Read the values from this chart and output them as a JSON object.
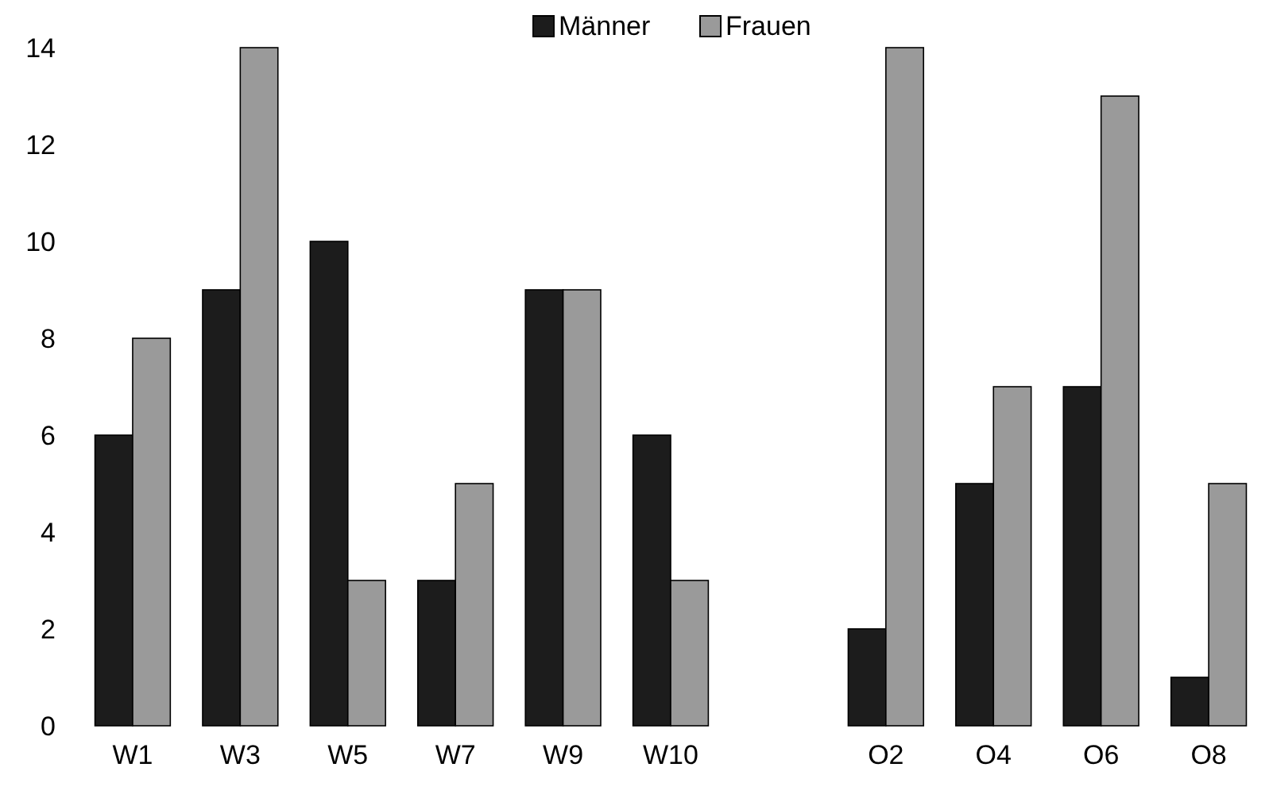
{
  "chart_data": {
    "type": "bar",
    "categories": [
      "W1",
      "W3",
      "W5",
      "W7",
      "W9",
      "W10",
      null,
      "O2",
      "O4",
      "O6",
      "O8"
    ],
    "series": [
      {
        "name": "Männer",
        "color": "#1c1c1c",
        "values": [
          6,
          9,
          10,
          3,
          9,
          6,
          null,
          2,
          5,
          7,
          1
        ]
      },
      {
        "name": "Frauen",
        "color": "#9a9a9a",
        "values": [
          8,
          14,
          3,
          5,
          9,
          3,
          null,
          14,
          7,
          13,
          5
        ]
      }
    ],
    "ylim": [
      0,
      14
    ],
    "yticks": [
      0,
      2,
      4,
      6,
      8,
      10,
      12,
      14
    ],
    "legend": "top",
    "grid": false
  }
}
